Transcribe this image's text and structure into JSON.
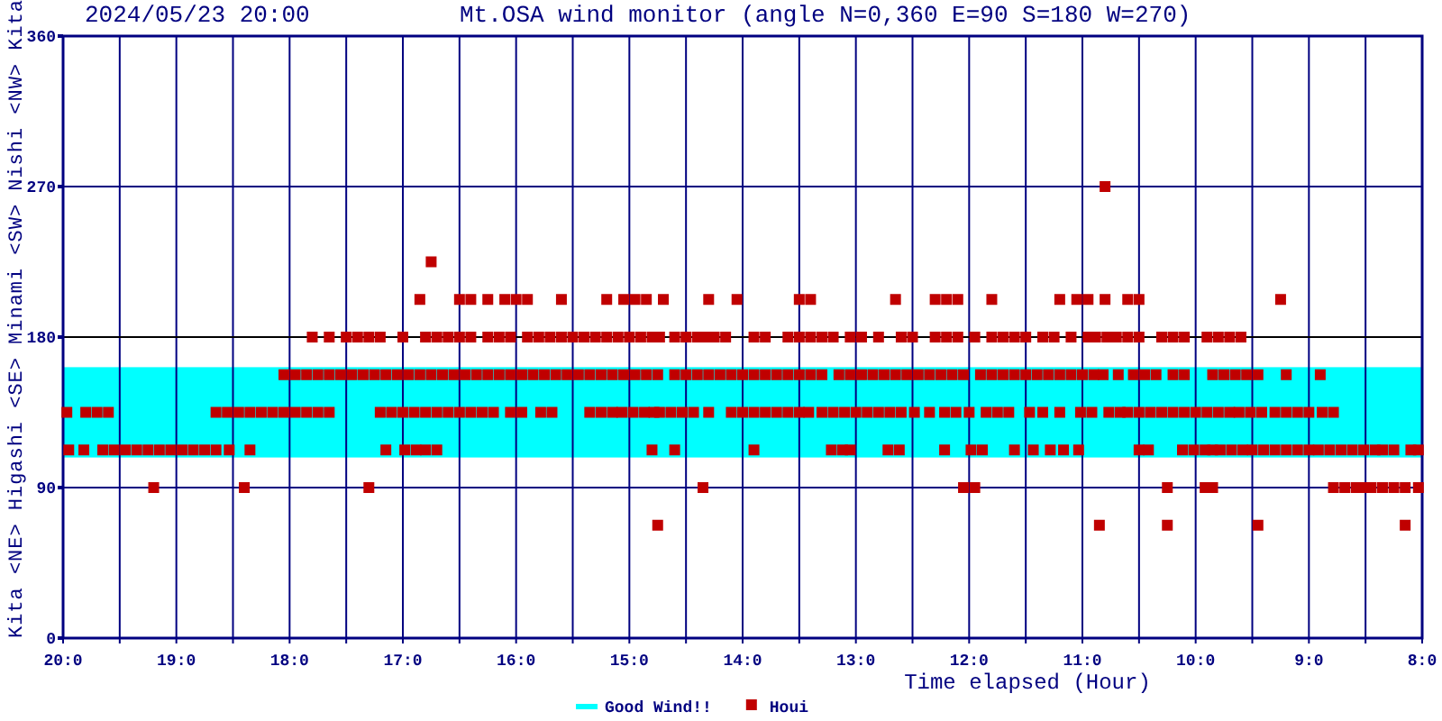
{
  "chart_data": {
    "type": "scatter",
    "title": "Mt.OSA wind monitor (angle N=0,360 E=90 S=180 W=270)",
    "subtitle": "2024/05/23 20:00",
    "xlabel": "Time elapsed (Hour)",
    "ylabel": "Kita <NE> Higashi <SE> Minami <SW> Nishi <NW> Kita",
    "xlim": [
      "2024-05-23T20:00",
      "2024-05-23T08:00"
    ],
    "xticks": [
      {
        "value": "2024-05-23T20:00",
        "label": "20:0"
      },
      {
        "value": "2024-05-23T19:30",
        "label": null
      },
      {
        "value": "2024-05-23T19:00",
        "label": "19:0"
      },
      {
        "value": "2024-05-23T18:30",
        "label": null
      },
      {
        "value": "2024-05-23T18:00",
        "label": "18:0"
      },
      {
        "value": "2024-05-23T17:30",
        "label": null
      },
      {
        "value": "2024-05-23T17:00",
        "label": "17:0"
      },
      {
        "value": "2024-05-23T16:30",
        "label": null
      },
      {
        "value": "2024-05-23T16:00",
        "label": "16:0"
      },
      {
        "value": "2024-05-23T15:30",
        "label": null
      },
      {
        "value": "2024-05-23T15:00",
        "label": "15:0"
      },
      {
        "value": "2024-05-23T14:30",
        "label": null
      },
      {
        "value": "2024-05-23T14:00",
        "label": "14:0"
      },
      {
        "value": "2024-05-23T13:30",
        "label": null
      },
      {
        "value": "2024-05-23T13:00",
        "label": "13:0"
      },
      {
        "value": "2024-05-23T12:30",
        "label": null
      },
      {
        "value": "2024-05-23T12:00",
        "label": "12:0"
      },
      {
        "value": "2024-05-23T11:30",
        "label": null
      },
      {
        "value": "2024-05-23T11:00",
        "label": "11:0"
      },
      {
        "value": "2024-05-23T10:30",
        "label": null
      },
      {
        "value": "2024-05-23T10:00",
        "label": "10:0"
      },
      {
        "value": "2024-05-23T09:30",
        "label": null
      },
      {
        "value": "2024-05-23T09:00",
        "label": "9:0"
      },
      {
        "value": "2024-05-23T08:30",
        "label": null
      },
      {
        "value": "2024-05-23T08:00",
        "label": "8:0"
      }
    ],
    "ylim": [
      0,
      360
    ],
    "yticks": [
      0,
      90,
      180,
      270,
      360
    ],
    "grid": true,
    "legend": "bottom",
    "marker": "square",
    "bands": [
      {
        "axis": "y",
        "from": 108,
        "to": 162,
        "label": "Good Wind!!",
        "color": "#00ffff"
      }
    ],
    "ref_lines": [
      {
        "axis": "y",
        "value": 180,
        "color": "#000000"
      }
    ],
    "series": [
      {
        "name": "Houi",
        "color": "#c00000",
        "x": [
          "2024-05-23T17:48",
          "2024-05-23T17:39",
          "2024-05-23T17:30",
          "2024-05-23T17:24",
          "2024-05-23T17:18",
          "2024-05-23T17:12",
          "2024-05-23T17:00",
          "2024-05-23T16:48",
          "2024-05-23T16:42",
          "2024-05-23T16:36",
          "2024-05-23T16:30",
          "2024-05-23T16:24",
          "2024-05-23T16:15",
          "2024-05-23T16:09",
          "2024-05-23T16:03",
          "2024-05-23T15:54",
          "2024-05-23T15:48",
          "2024-05-23T15:42",
          "2024-05-23T15:36",
          "2024-05-23T15:30",
          "2024-05-23T15:24",
          "2024-05-23T15:18",
          "2024-05-23T15:12",
          "2024-05-23T15:06",
          "2024-05-23T15:00",
          "2024-05-23T14:54",
          "2024-05-23T14:48",
          "2024-05-23T14:44",
          "2024-05-23T14:36",
          "2024-05-23T14:30",
          "2024-05-23T14:24",
          "2024-05-23T14:20",
          "2024-05-23T14:15",
          "2024-05-23T14:09",
          "2024-05-23T13:54",
          "2024-05-23T13:48",
          "2024-05-23T13:36",
          "2024-05-23T13:30",
          "2024-05-23T13:24",
          "2024-05-23T13:18",
          "2024-05-23T13:12",
          "2024-05-23T13:03",
          "2024-05-23T12:57",
          "2024-05-23T12:48",
          "2024-05-23T12:36",
          "2024-05-23T12:30",
          "2024-05-23T12:18",
          "2024-05-23T12:12",
          "2024-05-23T12:06",
          "2024-05-23T11:57",
          "2024-05-23T11:48",
          "2024-05-23T11:42",
          "2024-05-23T11:36",
          "2024-05-23T11:30",
          "2024-05-23T11:21",
          "2024-05-23T11:15",
          "2024-05-23T11:06",
          "2024-05-23T10:57",
          "2024-05-23T10:53",
          "2024-05-23T10:47",
          "2024-05-23T10:42",
          "2024-05-23T10:36",
          "2024-05-23T10:30",
          "2024-05-23T10:18",
          "2024-05-23T10:12",
          "2024-05-23T10:06",
          "2024-05-23T09:54",
          "2024-05-23T09:48",
          "2024-05-23T09:42",
          "2024-05-23T09:36",
          "2024-05-23T16:51",
          "2024-05-23T16:30",
          "2024-05-23T16:24",
          "2024-05-23T16:15",
          "2024-05-23T16:06",
          "2024-05-23T16:00",
          "2024-05-23T15:54",
          "2024-05-23T15:36",
          "2024-05-23T15:12",
          "2024-05-23T15:03",
          "2024-05-23T14:57",
          "2024-05-23T14:51",
          "2024-05-23T14:42",
          "2024-05-23T14:18",
          "2024-05-23T14:03",
          "2024-05-23T13:30",
          "2024-05-23T13:24",
          "2024-05-23T12:39",
          "2024-05-23T12:18",
          "2024-05-23T12:12",
          "2024-05-23T12:06",
          "2024-05-23T11:48",
          "2024-05-23T11:12",
          "2024-05-23T11:03",
          "2024-05-23T10:57",
          "2024-05-23T10:48",
          "2024-05-23T10:36",
          "2024-05-23T10:30",
          "2024-05-23T09:15",
          "2024-05-23T16:45",
          "2024-05-23T10:48",
          "2024-05-23T18:03",
          "2024-05-23T17:57",
          "2024-05-23T17:51",
          "2024-05-23T17:45",
          "2024-05-23T17:39",
          "2024-05-23T17:33",
          "2024-05-23T17:27",
          "2024-05-23T17:21",
          "2024-05-23T17:15",
          "2024-05-23T17:09",
          "2024-05-23T17:03",
          "2024-05-23T16:57",
          "2024-05-23T16:51",
          "2024-05-23T16:45",
          "2024-05-23T16:39",
          "2024-05-23T16:33",
          "2024-05-23T16:27",
          "2024-05-23T16:21",
          "2024-05-23T16:15",
          "2024-05-23T16:09",
          "2024-05-23T16:03",
          "2024-05-23T15:57",
          "2024-05-23T15:51",
          "2024-05-23T15:45",
          "2024-05-23T15:39",
          "2024-05-23T15:33",
          "2024-05-23T15:27",
          "2024-05-23T15:21",
          "2024-05-23T15:15",
          "2024-05-23T15:09",
          "2024-05-23T15:03",
          "2024-05-23T14:57",
          "2024-05-23T14:51",
          "2024-05-23T14:45",
          "2024-05-23T14:36",
          "2024-05-23T14:30",
          "2024-05-23T14:24",
          "2024-05-23T14:18",
          "2024-05-23T14:12",
          "2024-05-23T14:06",
          "2024-05-23T14:00",
          "2024-05-23T13:54",
          "2024-05-23T13:48",
          "2024-05-23T13:42",
          "2024-05-23T13:36",
          "2024-05-23T13:30",
          "2024-05-23T13:24",
          "2024-05-23T13:18",
          "2024-05-23T13:09",
          "2024-05-23T13:03",
          "2024-05-23T12:57",
          "2024-05-23T12:51",
          "2024-05-23T12:45",
          "2024-05-23T12:39",
          "2024-05-23T12:33",
          "2024-05-23T12:27",
          "2024-05-23T12:21",
          "2024-05-23T12:15",
          "2024-05-23T12:09",
          "2024-05-23T12:03",
          "2024-05-23T11:54",
          "2024-05-23T11:48",
          "2024-05-23T11:42",
          "2024-05-23T11:36",
          "2024-05-23T11:30",
          "2024-05-23T11:24",
          "2024-05-23T11:18",
          "2024-05-23T11:12",
          "2024-05-23T11:06",
          "2024-05-23T11:00",
          "2024-05-23T10:54",
          "2024-05-23T10:49",
          "2024-05-23T10:41",
          "2024-05-23T10:33",
          "2024-05-23T10:27",
          "2024-05-23T10:21",
          "2024-05-23T10:12",
          "2024-05-23T10:06",
          "2024-05-23T09:51",
          "2024-05-23T09:45",
          "2024-05-23T09:39",
          "2024-05-23T09:33",
          "2024-05-23T09:27",
          "2024-05-23T09:12",
          "2024-05-23T08:54",
          "2024-05-23T19:58",
          "2024-05-23T19:48",
          "2024-05-23T19:42",
          "2024-05-23T19:36",
          "2024-05-23T18:39",
          "2024-05-23T18:33",
          "2024-05-23T18:27",
          "2024-05-23T18:21",
          "2024-05-23T18:15",
          "2024-05-23T18:09",
          "2024-05-23T18:03",
          "2024-05-23T17:57",
          "2024-05-23T17:51",
          "2024-05-23T17:45",
          "2024-05-23T17:39",
          "2024-05-23T17:12",
          "2024-05-23T17:06",
          "2024-05-23T17:00",
          "2024-05-23T16:54",
          "2024-05-23T16:48",
          "2024-05-23T16:42",
          "2024-05-23T16:36",
          "2024-05-23T16:30",
          "2024-05-23T16:24",
          "2024-05-23T16:18",
          "2024-05-23T16:12",
          "2024-05-23T16:03",
          "2024-05-23T15:57",
          "2024-05-23T15:47",
          "2024-05-23T15:41",
          "2024-05-23T15:21",
          "2024-05-23T15:15",
          "2024-05-23T15:09",
          "2024-05-23T15:04",
          "2024-05-23T14:58",
          "2024-05-23T14:52",
          "2024-05-23T14:47",
          "2024-05-23T14:44",
          "2024-05-23T14:38",
          "2024-05-23T14:32",
          "2024-05-23T14:26",
          "2024-05-23T14:18",
          "2024-05-23T14:06",
          "2024-05-23T14:00",
          "2024-05-23T13:54",
          "2024-05-23T13:48",
          "2024-05-23T13:42",
          "2024-05-23T13:36",
          "2024-05-23T13:30",
          "2024-05-23T13:25",
          "2024-05-23T13:18",
          "2024-05-23T13:12",
          "2024-05-23T13:06",
          "2024-05-23T13:00",
          "2024-05-23T12:54",
          "2024-05-23T12:48",
          "2024-05-23T12:42",
          "2024-05-23T12:36",
          "2024-05-23T12:29",
          "2024-05-23T12:21",
          "2024-05-23T12:13",
          "2024-05-23T12:07",
          "2024-05-23T12:00",
          "2024-05-23T11:51",
          "2024-05-23T11:45",
          "2024-05-23T11:39",
          "2024-05-23T11:28",
          "2024-05-23T11:21",
          "2024-05-23T11:12",
          "2024-05-23T11:01",
          "2024-05-23T10:55",
          "2024-05-23T10:46",
          "2024-05-23T10:40",
          "2024-05-23T10:36",
          "2024-05-23T10:30",
          "2024-05-23T10:24",
          "2024-05-23T10:18",
          "2024-05-23T10:12",
          "2024-05-23T10:06",
          "2024-05-23T10:00",
          "2024-05-23T09:54",
          "2024-05-23T09:48",
          "2024-05-23T09:42",
          "2024-05-23T09:37",
          "2024-05-23T09:31",
          "2024-05-23T09:25",
          "2024-05-23T09:18",
          "2024-05-23T09:12",
          "2024-05-23T09:06",
          "2024-05-23T09:00",
          "2024-05-23T08:53",
          "2024-05-23T08:47",
          "2024-05-23T19:57",
          "2024-05-23T19:49",
          "2024-05-23T19:39",
          "2024-05-23T19:33",
          "2024-05-23T19:27",
          "2024-05-23T19:21",
          "2024-05-23T19:15",
          "2024-05-23T19:09",
          "2024-05-23T19:03",
          "2024-05-23T18:57",
          "2024-05-23T18:51",
          "2024-05-23T18:45",
          "2024-05-23T18:39",
          "2024-05-23T18:32",
          "2024-05-23T18:21",
          "2024-05-23T17:09",
          "2024-05-23T16:59",
          "2024-05-23T16:53",
          "2024-05-23T16:48",
          "2024-05-23T16:42",
          "2024-05-23T14:48",
          "2024-05-23T14:36",
          "2024-05-23T13:54",
          "2024-05-23T13:13",
          "2024-05-23T13:07",
          "2024-05-23T13:03",
          "2024-05-23T12:43",
          "2024-05-23T12:37",
          "2024-05-23T12:13",
          "2024-05-23T11:59",
          "2024-05-23T11:53",
          "2024-05-23T11:36",
          "2024-05-23T11:26",
          "2024-05-23T11:17",
          "2024-05-23T11:10",
          "2024-05-23T11:02",
          "2024-05-23T10:30",
          "2024-05-23T10:25",
          "2024-05-23T10:07",
          "2024-05-23T10:01",
          "2024-05-23T09:55",
          "2024-05-23T09:51",
          "2024-05-23T09:47",
          "2024-05-23T09:41",
          "2024-05-23T09:35",
          "2024-05-23T09:30",
          "2024-05-23T09:24",
          "2024-05-23T09:18",
          "2024-05-23T09:12",
          "2024-05-23T09:06",
          "2024-05-23T09:00",
          "2024-05-23T08:55",
          "2024-05-23T08:49",
          "2024-05-23T08:43",
          "2024-05-23T08:37",
          "2024-05-23T08:31",
          "2024-05-23T08:25",
          "2024-05-23T08:21",
          "2024-05-23T08:15",
          "2024-05-23T08:06",
          "2024-05-23T08:02",
          "2024-05-23T19:12",
          "2024-05-23T18:24",
          "2024-05-23T17:18",
          "2024-05-23T14:21",
          "2024-05-23T12:03",
          "2024-05-23T11:57",
          "2024-05-23T10:15",
          "2024-05-23T09:55",
          "2024-05-23T09:51",
          "2024-05-23T08:47",
          "2024-05-23T08:41",
          "2024-05-23T08:35",
          "2024-05-23T08:30",
          "2024-05-23T08:27",
          "2024-05-23T08:21",
          "2024-05-23T08:15",
          "2024-05-23T08:09",
          "2024-05-23T08:02",
          "2024-05-23T14:45",
          "2024-05-23T10:51",
          "2024-05-23T10:15",
          "2024-05-23T09:27",
          "2024-05-23T08:09"
        ],
        "values": [
          180,
          180,
          180,
          180,
          180,
          180,
          180,
          180,
          180,
          180,
          180,
          180,
          180,
          180,
          180,
          180,
          180,
          180,
          180,
          180,
          180,
          180,
          180,
          180,
          180,
          180,
          180,
          180,
          180,
          180,
          180,
          180,
          180,
          180,
          180,
          180,
          180,
          180,
          180,
          180,
          180,
          180,
          180,
          180,
          180,
          180,
          180,
          180,
          180,
          180,
          180,
          180,
          180,
          180,
          180,
          180,
          180,
          180,
          180,
          180,
          180,
          180,
          180,
          180,
          180,
          180,
          180,
          180,
          180,
          180,
          202.5,
          202.5,
          202.5,
          202.5,
          202.5,
          202.5,
          202.5,
          202.5,
          202.5,
          202.5,
          202.5,
          202.5,
          202.5,
          202.5,
          202.5,
          202.5,
          202.5,
          202.5,
          202.5,
          202.5,
          202.5,
          202.5,
          202.5,
          202.5,
          202.5,
          202.5,
          202.5,
          202.5,
          202.5,
          225,
          270,
          157.5,
          157.5,
          157.5,
          157.5,
          157.5,
          157.5,
          157.5,
          157.5,
          157.5,
          157.5,
          157.5,
          157.5,
          157.5,
          157.5,
          157.5,
          157.5,
          157.5,
          157.5,
          157.5,
          157.5,
          157.5,
          157.5,
          157.5,
          157.5,
          157.5,
          157.5,
          157.5,
          157.5,
          157.5,
          157.5,
          157.5,
          157.5,
          157.5,
          157.5,
          157.5,
          157.5,
          157.5,
          157.5,
          157.5,
          157.5,
          157.5,
          157.5,
          157.5,
          157.5,
          157.5,
          157.5,
          157.5,
          157.5,
          157.5,
          157.5,
          157.5,
          157.5,
          157.5,
          157.5,
          157.5,
          157.5,
          157.5,
          157.5,
          157.5,
          157.5,
          157.5,
          157.5,
          157.5,
          157.5,
          157.5,
          157.5,
          157.5,
          157.5,
          157.5,
          157.5,
          157.5,
          157.5,
          157.5,
          157.5,
          157.5,
          157.5,
          157.5,
          157.5,
          157.5,
          157.5,
          157.5,
          157.5,
          157.5,
          157.5,
          157.5,
          135,
          135,
          135,
          135,
          135,
          135,
          135,
          135,
          135,
          135,
          135,
          135,
          135,
          135,
          135,
          135,
          135,
          135,
          135,
          135,
          135,
          135,
          135,
          135,
          135,
          135,
          135,
          135,
          135,
          135,
          135,
          135,
          135,
          135,
          135,
          135,
          135,
          135,
          135,
          135,
          135,
          135,
          135,
          135,
          135,
          135,
          135,
          135,
          135,
          135,
          135,
          135,
          135,
          135,
          135,
          135,
          135,
          135,
          135,
          135,
          135,
          135,
          135,
          135,
          135,
          135,
          135,
          135,
          135,
          135,
          135,
          135,
          135,
          135,
          135,
          135,
          135,
          135,
          135,
          135,
          135,
          135,
          135,
          135,
          135,
          135,
          135,
          135,
          135,
          135,
          135,
          135,
          112.5,
          112.5,
          112.5,
          112.5,
          112.5,
          112.5,
          112.5,
          112.5,
          112.5,
          112.5,
          112.5,
          112.5,
          112.5,
          112.5,
          112.5,
          112.5,
          112.5,
          112.5,
          112.5,
          112.5,
          112.5,
          112.5,
          112.5,
          112.5,
          112.5,
          112.5,
          112.5,
          112.5,
          112.5,
          112.5,
          112.5,
          112.5,
          112.5,
          112.5,
          112.5,
          112.5,
          112.5,
          112.5,
          112.5,
          112.5,
          112.5,
          112.5,
          112.5,
          112.5,
          112.5,
          112.5,
          112.5,
          112.5,
          112.5,
          112.5,
          112.5,
          112.5,
          112.5,
          112.5,
          112.5,
          112.5,
          112.5,
          112.5,
          112.5,
          112.5,
          112.5,
          90,
          90,
          90,
          90,
          90,
          90,
          90,
          90,
          90,
          90,
          90,
          90,
          90,
          90,
          90,
          90,
          90,
          90,
          67.5,
          67.5,
          67.5,
          67.5,
          67.5
        ]
      }
    ]
  }
}
